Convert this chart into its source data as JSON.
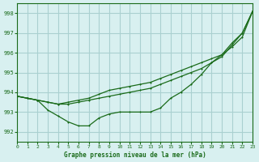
{
  "title": "Graphe pression niveau de la mer (hPa)",
  "bg_color": "#d8f0f0",
  "grid_color": "#aad0d0",
  "line_color": "#1a6b1a",
  "marker_color": "#1a6b1a",
  "xlim": [
    0,
    23
  ],
  "ylim": [
    991.5,
    998.5
  ],
  "yticks": [
    992,
    993,
    994,
    995,
    996,
    997,
    998
  ],
  "xticks": [
    0,
    1,
    2,
    3,
    4,
    5,
    6,
    7,
    8,
    9,
    10,
    11,
    12,
    13,
    14,
    15,
    16,
    17,
    18,
    19,
    20,
    21,
    22,
    23
  ],
  "line1_x": [
    0,
    1,
    2,
    3,
    4,
    5,
    6,
    7,
    8,
    9,
    10,
    11,
    12,
    13,
    14,
    15,
    16,
    17,
    18,
    19,
    20,
    21,
    22,
    23
  ],
  "line1_y": [
    993.8,
    993.7,
    993.6,
    993.1,
    992.8,
    992.5,
    992.3,
    992.3,
    992.7,
    992.9,
    993.0,
    993.0,
    993.0,
    993.0,
    993.2,
    993.7,
    994.0,
    994.4,
    994.9,
    995.5,
    995.9,
    996.5,
    997.0,
    998.1
  ],
  "line2_x": [
    0,
    1,
    2,
    3,
    4,
    5,
    6,
    7,
    8,
    9,
    10,
    11,
    12,
    13,
    14,
    15,
    16,
    17,
    18,
    19,
    20,
    21,
    22,
    23
  ],
  "line2_y": [
    993.8,
    993.7,
    993.6,
    993.5,
    993.4,
    993.5,
    993.6,
    993.7,
    993.9,
    994.1,
    994.2,
    994.3,
    994.4,
    994.5,
    994.7,
    994.9,
    995.1,
    995.3,
    995.5,
    995.7,
    995.9,
    996.3,
    996.8,
    998.1
  ],
  "line3_x": [
    0,
    1,
    2,
    3,
    4,
    5,
    6,
    7,
    8,
    9,
    10,
    11,
    12,
    13,
    14,
    15,
    16,
    17,
    18,
    19,
    20,
    21,
    22,
    23
  ],
  "line3_y": [
    993.8,
    993.7,
    993.6,
    993.5,
    993.4,
    993.4,
    993.5,
    993.6,
    993.7,
    993.8,
    993.9,
    994.0,
    994.1,
    994.2,
    994.4,
    994.6,
    994.8,
    995.0,
    995.2,
    995.5,
    995.8,
    996.4,
    997.0,
    998.1
  ]
}
